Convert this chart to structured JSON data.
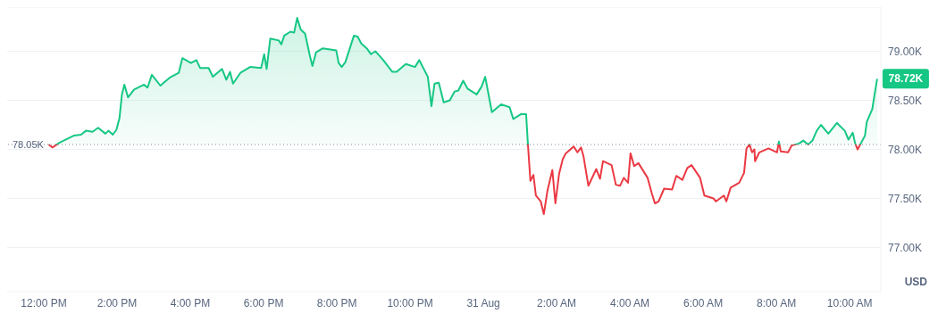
{
  "chart_data": {
    "type": "area",
    "ylabel": "USD",
    "x": [
      "--08-30T12:08",
      "--08-30T12:14",
      "--08-30T12:26",
      "--08-30T12:49",
      "--08-30T13:01",
      "--08-30T13:09",
      "--08-30T13:20",
      "--08-30T13:29",
      "--08-30T13:41",
      "--08-30T13:46",
      "--08-30T13:53",
      "--08-30T13:59",
      "--08-30T14:04",
      "--08-30T14:08",
      "--08-30T14:12",
      "--08-30T14:18",
      "--08-30T14:28",
      "--08-30T14:44",
      "--08-30T14:50",
      "--08-30T14:57",
      "--08-30T15:11",
      "--08-30T15:26",
      "--08-30T15:41",
      "--08-30T15:47",
      "--08-30T16:01",
      "--08-30T16:10",
      "--08-30T16:16",
      "--08-30T16:30",
      "--08-30T16:37",
      "--08-30T16:52",
      "--08-30T16:59",
      "--08-30T17:05",
      "--08-30T17:10",
      "--08-30T17:22",
      "--08-30T17:38",
      "--08-30T17:56",
      "--08-30T18:01",
      "--08-30T18:05",
      "--08-30T18:11",
      "--08-30T18:25",
      "--08-30T18:29",
      "--08-30T18:34",
      "--08-30T18:44",
      "--08-30T18:50",
      "--08-30T18:55",
      "--08-30T19:01",
      "--08-30T19:08",
      "--08-30T19:16",
      "--08-30T19:20",
      "--08-30T19:26",
      "--08-30T19:37",
      "--08-30T19:59",
      "--08-30T20:03",
      "--08-30T20:08",
      "--08-30T20:14",
      "--08-30T20:28",
      "--08-30T20:34",
      "--08-30T20:40",
      "--08-30T20:49",
      "--08-30T20:56",
      "--08-30T21:03",
      "--08-30T21:09",
      "--08-30T21:16",
      "--08-30T21:31",
      "--08-30T21:38",
      "--08-30T21:53",
      "--08-30T22:08",
      "--08-30T22:15",
      "--08-30T22:29",
      "--08-30T22:35",
      "--08-30T22:40",
      "--08-30T22:47",
      "--08-30T22:55",
      "--08-30T23:05",
      "--08-30T23:13",
      "--08-30T23:19",
      "--08-30T23:27",
      "--08-30T23:34",
      "--08-30T23:49",
      "--08-30T23:57",
      "--08-31T00:03",
      "--08-31T00:14",
      "--08-31T00:29",
      "--08-31T00:43",
      "--08-31T00:49",
      "--08-31T01:02",
      "--08-31T01:10",
      "--08-31T01:13",
      "--08-31T01:17",
      "--08-31T01:22",
      "--08-31T01:26",
      "--08-31T01:34",
      "--08-31T01:39",
      "--08-31T01:45",
      "--08-31T01:53",
      "--08-31T01:58",
      "--08-31T02:04",
      "--08-31T02:10",
      "--08-31T02:15",
      "--08-31T02:28",
      "--08-31T02:34",
      "--08-31T02:40",
      "--08-31T02:44",
      "--08-31T02:52",
      "--08-31T03:05",
      "--08-31T03:11",
      "--08-31T03:16",
      "--08-31T03:30",
      "--08-31T03:37",
      "--08-31T03:44",
      "--08-31T03:50",
      "--08-31T03:57",
      "--08-31T04:01",
      "--08-31T04:07",
      "--08-31T04:14",
      "--08-31T04:29",
      "--08-31T04:36",
      "--08-31T04:41",
      "--08-31T04:47",
      "--08-31T04:56",
      "--08-31T05:09",
      "--08-31T05:16",
      "--08-31T05:26",
      "--08-31T05:34",
      "--08-31T05:41",
      "--08-31T05:55",
      "--08-31T06:02",
      "--08-31T06:17",
      "--08-31T06:21",
      "--08-31T06:34",
      "--08-31T06:38",
      "--08-31T06:45",
      "--08-31T06:59",
      "--08-31T07:07",
      "--08-31T07:11",
      "--08-31T07:16",
      "--08-31T07:20",
      "--08-31T07:24",
      "--08-31T07:25",
      "--08-31T07:32",
      "--08-31T07:47",
      "--08-31T08:01",
      "--08-31T08:04",
      "--08-31T08:07",
      "--08-31T08:19",
      "--08-31T08:25",
      "--08-31T08:37",
      "--08-31T08:44",
      "--08-31T08:52",
      "--08-31T08:59",
      "--08-31T09:06",
      "--08-31T09:13",
      "--08-31T09:25",
      "--08-31T09:39",
      "--08-31T09:52",
      "--08-31T09:58",
      "--08-31T10:05",
      "--08-31T10:09",
      "--08-31T10:13",
      "--08-31T10:25",
      "--08-31T10:28",
      "--08-31T10:37",
      "--08-31T10:40",
      "--08-31T10:45"
    ],
    "series": [
      {
        "colors": [
          "#16c784",
          "#ea3943",
          "#16c784",
          "#16c784",
          "#16c784",
          "#16c784",
          "#16c784",
          "#16c784",
          "#16c784",
          "#16c784",
          "#16c784",
          "#16c784",
          "#16c784",
          "#16c784",
          "#16c784",
          "#16c784",
          "#16c784",
          "#16c784",
          "#16c784",
          "#16c784",
          "#16c784",
          "#16c784",
          "#16c784",
          "#16c784",
          "#16c784",
          "#16c784",
          "#16c784",
          "#16c784",
          "#16c784",
          "#16c784",
          "#16c784",
          "#16c784",
          "#16c784",
          "#16c784",
          "#16c784",
          "#16c784",
          "#16c784",
          "#16c784",
          "#16c784",
          "#16c784",
          "#16c784",
          "#16c784",
          "#16c784",
          "#16c784",
          "#16c784",
          "#16c784",
          "#16c784",
          "#16c784",
          "#16c784",
          "#16c784",
          "#16c784",
          "#16c784",
          "#16c784",
          "#16c784",
          "#16c784",
          "#16c784",
          "#16c784",
          "#16c784",
          "#16c784",
          "#16c784",
          "#16c784",
          "#16c784",
          "#16c784",
          "#16c784",
          "#16c784",
          "#16c784",
          "#16c784",
          "#16c784",
          "#16c784",
          "#16c784",
          "#16c784",
          "#16c784",
          "#16c784",
          "#16c784",
          "#16c784",
          "#16c784",
          "#16c784",
          "#16c784",
          "#16c784",
          "#16c784",
          "#16c784",
          "#16c784",
          "#16c784",
          "#16c784",
          "#16c784",
          "#16c784",
          "#16c784",
          "#16c784",
          "#ea3943",
          "#ea3943",
          "#ea3943",
          "#ea3943",
          "#ea3943",
          "#ea3943",
          "#ea3943",
          "#ea3943",
          "#ea3943",
          "#ea3943",
          "#ea3943",
          "#ea3943",
          "#ea3943",
          "#ea3943",
          "#ea3943",
          "#ea3943",
          "#ea3943",
          "#ea3943",
          "#ea3943",
          "#ea3943",
          "#ea3943",
          "#ea3943",
          "#ea3943",
          "#ea3943",
          "#ea3943",
          "#ea3943",
          "#ea3943",
          "#ea3943",
          "#ea3943",
          "#ea3943",
          "#ea3943",
          "#ea3943",
          "#ea3943",
          "#ea3943",
          "#ea3943",
          "#ea3943",
          "#ea3943",
          "#ea3943",
          "#ea3943",
          "#ea3943",
          "#ea3943",
          "#ea3943",
          "#ea3943",
          "#ea3943",
          "#ea3943",
          "#ea3943",
          "#ea3943",
          "#16c784",
          "#ea3943",
          "#ea3943",
          "#ea3943",
          "#ea3943",
          "#ea3943",
          "#ea3943",
          "#16c784",
          "#ea3943",
          "#ea3943",
          "#ea3943",
          "#16c784",
          "#16c784",
          "#16c784",
          "#16c784",
          "#16c784",
          "#16c784",
          "#16c784",
          "#16c784",
          "#16c784",
          "#16c784",
          "#16c784",
          "#16c784",
          "#ea3943",
          "#16c784",
          "#16c784",
          "#16c784",
          "#16c784",
          "#16c784"
        ],
        "values": [
          78.05,
          78.02,
          78.07,
          78.14,
          78.15,
          78.19,
          78.18,
          78.22,
          78.16,
          78.19,
          78.15,
          78.2,
          78.32,
          78.56,
          78.66,
          78.53,
          78.61,
          78.66,
          78.63,
          78.76,
          78.65,
          78.73,
          78.78,
          78.93,
          78.88,
          78.91,
          78.83,
          78.83,
          78.74,
          78.82,
          78.71,
          78.79,
          78.67,
          78.78,
          78.84,
          78.83,
          78.97,
          78.82,
          79.13,
          79.11,
          79.07,
          79.16,
          79.2,
          79.19,
          79.34,
          79.22,
          79.18,
          78.95,
          78.85,
          78.99,
          79.03,
          79.01,
          78.88,
          78.84,
          78.89,
          79.16,
          79.15,
          79.08,
          79.03,
          78.97,
          79.0,
          78.96,
          78.91,
          78.79,
          78.79,
          78.87,
          78.84,
          78.91,
          78.74,
          78.44,
          78.67,
          78.68,
          78.48,
          78.5,
          78.59,
          78.6,
          78.7,
          78.62,
          78.56,
          78.64,
          78.74,
          78.38,
          78.46,
          78.43,
          78.31,
          78.36,
          78.36,
          78.05,
          77.68,
          77.74,
          77.53,
          77.47,
          77.34,
          77.58,
          77.79,
          77.45,
          77.75,
          77.9,
          77.96,
          78.03,
          77.97,
          78.02,
          77.93,
          77.63,
          77.8,
          77.7,
          77.88,
          77.84,
          77.64,
          77.63,
          77.71,
          77.66,
          77.96,
          77.83,
          77.86,
          77.71,
          77.55,
          77.45,
          77.47,
          77.6,
          77.59,
          77.73,
          77.69,
          77.81,
          77.84,
          77.71,
          77.53,
          77.5,
          77.47,
          77.53,
          77.47,
          77.61,
          77.66,
          77.76,
          78.01,
          78.05,
          77.97,
          78.0,
          77.88,
          77.97,
          78.01,
          77.97,
          78.08,
          77.98,
          77.97,
          78.04,
          78.06,
          78.09,
          78.05,
          78.09,
          78.19,
          78.25,
          78.16,
          78.27,
          78.19,
          78.1,
          78.17,
          78.06,
          78.0,
          78.14,
          78.28,
          78.41,
          78.53,
          78.72
        ]
      }
    ],
    "xlim": [
      "--08-30T11:00",
      "--08-31T10:51"
    ],
    "xticks": [
      {
        "value": "--08-30T12:00",
        "label": "12:00 PM"
      },
      {
        "value": "--08-30T14:00",
        "label": "2:00 PM"
      },
      {
        "value": "--08-30T16:00",
        "label": "4:00 PM"
      },
      {
        "value": "--08-30T18:00",
        "label": "6:00 PM"
      },
      {
        "value": "--08-30T20:00",
        "label": "8:00 PM"
      },
      {
        "value": "--08-30T22:00",
        "label": "10:00 PM"
      },
      {
        "value": "--08-31",
        "label": "31 Aug"
      },
      {
        "value": "--08-31T02:00",
        "label": "2:00 AM"
      },
      {
        "value": "--08-31T04:00",
        "label": "4:00 AM"
      },
      {
        "value": "--08-31T06:00",
        "label": "6:00 AM"
      },
      {
        "value": "--08-31T08:00",
        "label": "8:00 AM"
      },
      {
        "value": "--08-31T10:00",
        "label": "10:00 AM"
      }
    ],
    "ylim": [
      76.55,
      79.45
    ],
    "yticks": [
      {
        "value": 77,
        "label": "77.00K"
      },
      {
        "value": 77.5,
        "label": "77.50K"
      },
      {
        "value": 78,
        "label": "78.00K"
      },
      {
        "value": 78.5,
        "label": "78.50K"
      },
      {
        "value": 79,
        "label": "79.00K"
      }
    ],
    "grid": "y",
    "ref_lines": [
      {
        "axis": "y",
        "value": 78.05,
        "label": "78.05K",
        "color": "#808a9d",
        "line_style": "dotted"
      }
    ],
    "annotations": [
      {
        "text": "78.72K",
        "x": "--08-31T10:45",
        "y": 78.72
      }
    ]
  }
}
